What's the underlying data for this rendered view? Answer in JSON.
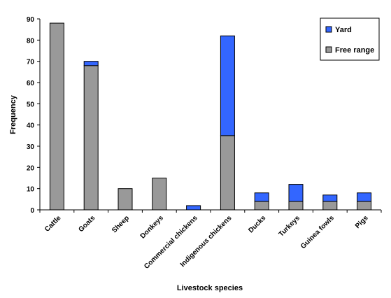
{
  "chart_data": {
    "type": "bar",
    "stacked": true,
    "categories": [
      "Cattle",
      "Goats",
      "Sheep",
      "Donkeys",
      "Commercial chickens",
      "Indigenous chickens",
      "Ducks",
      "Turkeys",
      "Guinea fowls",
      "Pigs"
    ],
    "series": [
      {
        "name": "Free range",
        "color": "#999999",
        "values": [
          88,
          68,
          10,
          15,
          0,
          35,
          4,
          4,
          4,
          4
        ]
      },
      {
        "name": "Yard",
        "color": "#3366FF",
        "values": [
          0,
          2,
          0,
          0,
          2,
          47,
          4,
          8,
          3,
          4
        ]
      }
    ],
    "xlabel": "Livestock species",
    "ylabel": "Frequency",
    "ylim": [
      0,
      90
    ],
    "yticks": [
      0,
      10,
      20,
      30,
      40,
      50,
      60,
      70,
      80,
      90
    ],
    "grid": false,
    "legend_position": "top-right",
    "legend_order": [
      "Yard",
      "Free range"
    ]
  }
}
